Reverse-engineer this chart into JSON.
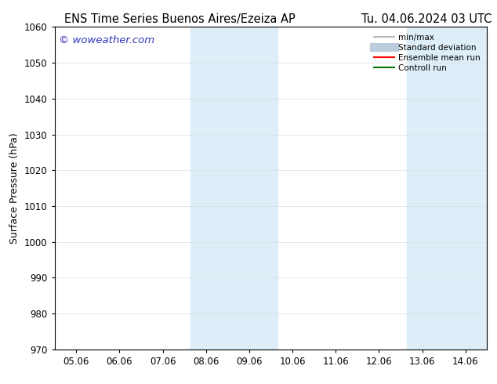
{
  "title_left": "ENS Time Series Buenos Aires/Ezeiza AP",
  "title_right": "Tu. 04.06.2024 03 UTC",
  "ylabel": "Surface Pressure (hPa)",
  "ylim": [
    970,
    1060
  ],
  "yticks": [
    970,
    980,
    990,
    1000,
    1010,
    1020,
    1030,
    1040,
    1050,
    1060
  ],
  "xtick_labels": [
    "05.06",
    "06.06",
    "07.06",
    "08.06",
    "09.06",
    "10.06",
    "11.06",
    "12.06",
    "13.06",
    "14.06"
  ],
  "xtick_positions": [
    0,
    1,
    2,
    3,
    4,
    5,
    6,
    7,
    8,
    9
  ],
  "xlim": [
    -0.5,
    9.5
  ],
  "shaded_bands": [
    {
      "xmin": 2.65,
      "xmax": 4.65
    },
    {
      "xmin": 7.65,
      "xmax": 9.5
    }
  ],
  "shade_color": "#ddeef8",
  "watermark": "© woweather.com",
  "watermark_color": "#3333bb",
  "legend_entries": [
    {
      "label": "min/max",
      "color": "#aaaaaa",
      "lw": 1.2,
      "style": "line"
    },
    {
      "label": "Standard deviation",
      "color": "#bbccdd",
      "lw": 8,
      "style": "line"
    },
    {
      "label": "Ensemble mean run",
      "color": "#ff0000",
      "lw": 1.5,
      "style": "line"
    },
    {
      "label": "Controll run",
      "color": "#007700",
      "lw": 1.5,
      "style": "line"
    }
  ],
  "bg_color": "#ffffff",
  "grid_color": "#dddddd",
  "title_fontsize": 10.5,
  "axis_label_fontsize": 9,
  "tick_fontsize": 8.5,
  "watermark_fontsize": 9.5,
  "legend_fontsize": 7.5
}
